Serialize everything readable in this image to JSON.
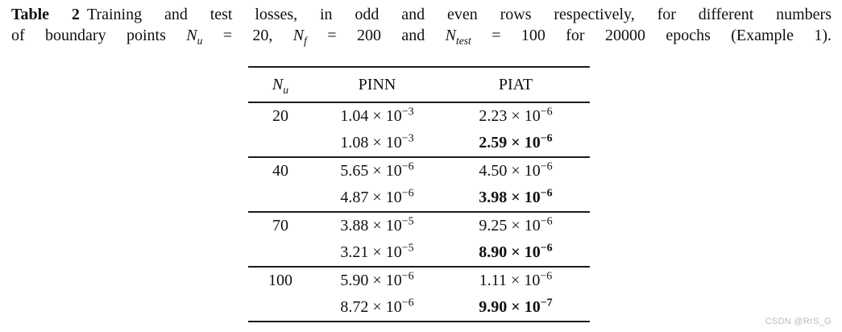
{
  "caption": {
    "label": "Table 2",
    "line1_text": "Training and test losses, in odd and even rows respectively, for different numbers",
    "line2": {
      "t0": "of boundary points ",
      "var1": "N",
      "sub1": "u",
      "t1": " = 20, ",
      "var2": "N",
      "sub2": "f",
      "t2": " = 200 and ",
      "var3": "N",
      "sub3": "test",
      "t3": " = 100 for 20000 epochs (Example 1)."
    }
  },
  "fmt": {
    "times": " × ",
    "base": "10"
  },
  "table": {
    "header": {
      "col0_var": "N",
      "col0_sub": "u",
      "col1": "PINN",
      "col2": "PIAT"
    },
    "groups": [
      {
        "nu": "20",
        "train": {
          "pinn": {
            "m": "1.04",
            "e": "−3"
          },
          "piat": {
            "m": "2.23",
            "e": "−6"
          }
        },
        "test": {
          "pinn": {
            "m": "1.08",
            "e": "−3"
          },
          "piat": {
            "m": "2.59",
            "e": "−6"
          }
        }
      },
      {
        "nu": "40",
        "train": {
          "pinn": {
            "m": "5.65",
            "e": "−6"
          },
          "piat": {
            "m": "4.50",
            "e": "−6"
          }
        },
        "test": {
          "pinn": {
            "m": "4.87",
            "e": "−6"
          },
          "piat": {
            "m": "3.98",
            "e": "−6"
          }
        }
      },
      {
        "nu": "70",
        "train": {
          "pinn": {
            "m": "3.88",
            "e": "−5"
          },
          "piat": {
            "m": "9.25",
            "e": "−6"
          }
        },
        "test": {
          "pinn": {
            "m": "3.21",
            "e": "−5"
          },
          "piat": {
            "m": "8.90",
            "e": "−6"
          }
        }
      },
      {
        "nu": "100",
        "train": {
          "pinn": {
            "m": "5.90",
            "e": "−6"
          },
          "piat": {
            "m": "1.11",
            "e": "−6"
          }
        },
        "test": {
          "pinn": {
            "m": "8.72",
            "e": "−6"
          },
          "piat": {
            "m": "9.90",
            "e": "−7"
          }
        }
      }
    ]
  },
  "watermark": "CSDN @RrS_G"
}
